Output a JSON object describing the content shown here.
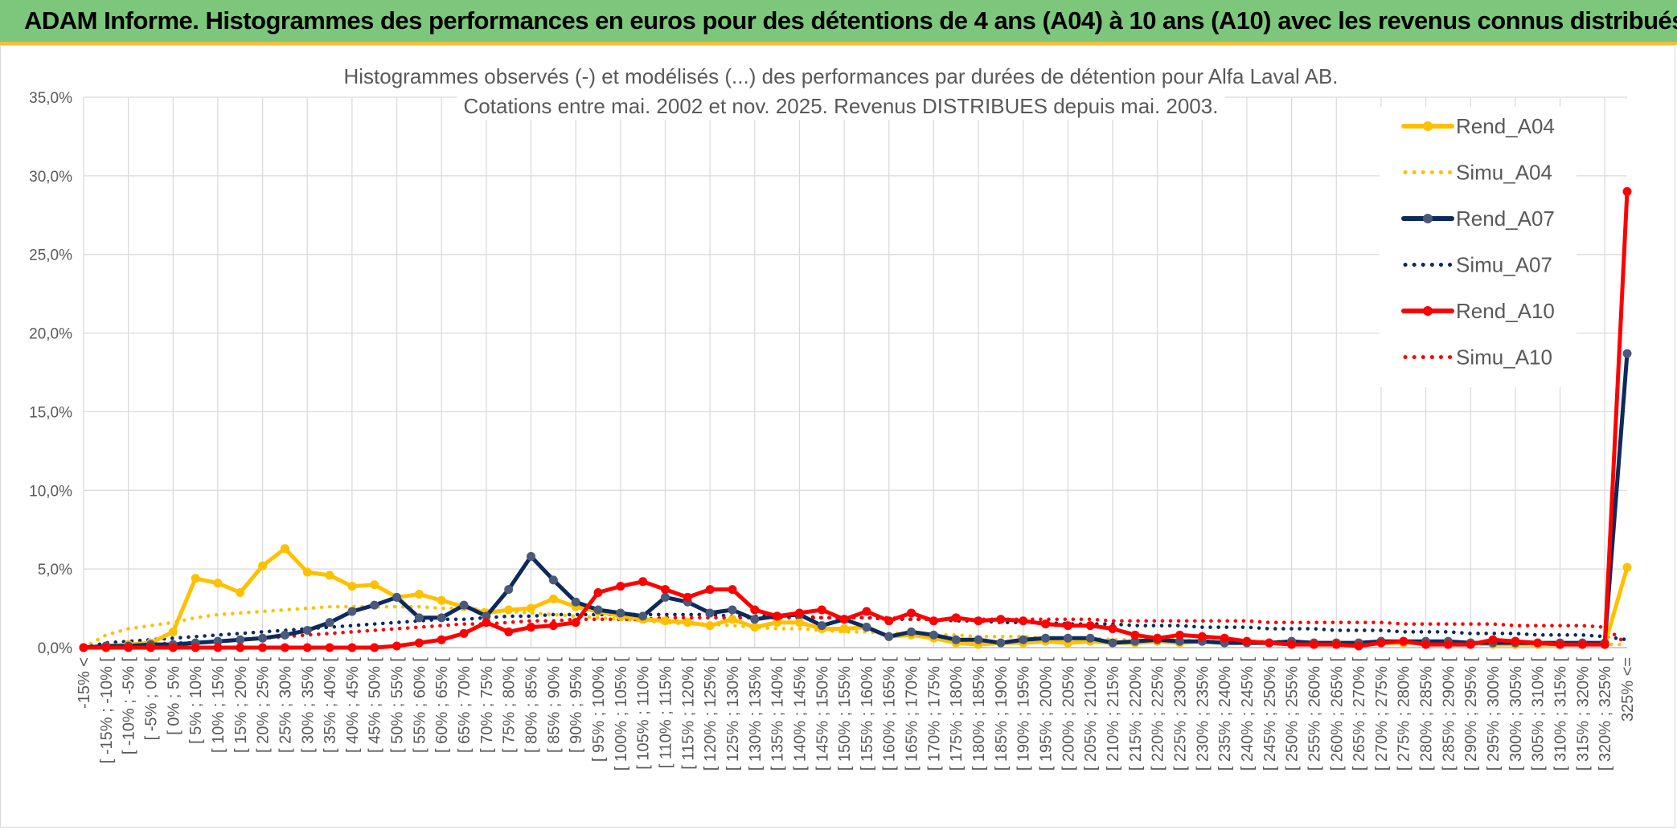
{
  "banner": {
    "title": "ADAM Informe. Histogrammes des performances en euros pour des détentions de 4 ans (A04) à 10 ans (A10) avec les revenus connus distribués"
  },
  "colors": {
    "banner": "#7cc77c",
    "banner_edge": "#f0c040",
    "a04": "#ffc000",
    "a07": "#0d2a5e",
    "a07_marker": "#4a5a7a",
    "a10": "#ff0000",
    "grid": "#d9d9d9",
    "axis_text": "#595959"
  },
  "chart_data": {
    "type": "line",
    "title": [
      "Histogrammes observés (-) et modélisés (...) des performances par durées de détention pour Alfa Laval AB.",
      "Cotations entre mai. 2002 et nov. 2025. Revenus DISTRIBUES depuis mai. 2003."
    ],
    "xlabel": "",
    "ylabel": "",
    "ylim": [
      0,
      35
    ],
    "yticks": [
      "0,0%",
      "5,0%",
      "10,0%",
      "15,0%",
      "20,0%",
      "25,0%",
      "30,0%",
      "35,0%"
    ],
    "legend_position": "right",
    "categories": [
      "-15% <",
      "[ -15% ; -10% [",
      "[ -10% ; -5% [",
      "[ -5% ; 0% [",
      "[ 0% ; 5% [",
      "[ 5% ; 10% [",
      "[ 10% ; 15% [",
      "[ 15% ; 20% [",
      "[ 20% ; 25% [",
      "[ 25% ; 30% [",
      "[ 30% ; 35% [",
      "[ 35% ; 40% [",
      "[ 40% ; 45% [",
      "[ 45% ; 50% [",
      "[ 50% ; 55% [",
      "[ 55% ; 60% [",
      "[ 60% ; 65% [",
      "[ 65% ; 70% [",
      "[ 70% ; 75% [",
      "[ 75% ; 80% [",
      "[ 80% ; 85% [",
      "[ 85% ; 90% [",
      "[ 90% ; 95% [",
      "[ 95% ; 100% [",
      "[ 100% ; 105% [",
      "[ 105% ; 110% [",
      "[ 110% ; 115% [",
      "[ 115% ; 120% [",
      "[ 120% ; 125% [",
      "[ 125% ; 130% [",
      "[ 130% ; 135% [",
      "[ 135% ; 140% [",
      "[ 140% ; 145% [",
      "[ 145% ; 150% [",
      "[ 150% ; 155% [",
      "[ 155% ; 160% [",
      "[ 160% ; 165% [",
      "[ 165% ; 170% [",
      "[ 170% ; 175% [",
      "[ 175% ; 180% [",
      "[ 180% ; 185% [",
      "[ 185% ; 190% [",
      "[ 190% ; 195% [",
      "[ 195% ; 200% [",
      "[ 200% ; 205% [",
      "[ 205% ; 210% [",
      "[ 210% ; 215% [",
      "[ 215% ; 220% [",
      "[ 220% ; 225% [",
      "[ 225% ; 230% [",
      "[ 230% ; 235% [",
      "[ 235% ; 240% [",
      "[ 240% ; 245% [",
      "[ 245% ; 250% [",
      "[ 250% ; 255% [",
      "[ 255% ; 260% [",
      "[ 260% ; 265% [",
      "[ 265% ; 270% [",
      "[ 270% ; 275% [",
      "[ 275% ; 280% [",
      "[ 280% ; 285% [",
      "[ 285% ; 290% [",
      "[ 290% ; 295% [",
      "[ 295% ; 300% [",
      "[ 300% ; 305% [",
      "[ 305% ; 310% [",
      "[ 310% ; 315% [",
      "[ 315% ; 320% [",
      "[ 320% ; 325% [",
      "325% <="
    ],
    "series": [
      {
        "name": "Rend_A04",
        "style": "solid",
        "color": "#ffc000",
        "values": [
          0.0,
          0.1,
          0.2,
          0.3,
          1.0,
          4.4,
          4.1,
          3.5,
          5.2,
          6.3,
          4.8,
          4.6,
          3.9,
          4.0,
          3.2,
          3.4,
          3.0,
          2.6,
          2.2,
          2.4,
          2.5,
          3.1,
          2.6,
          2.3,
          2.0,
          1.8,
          1.7,
          1.6,
          1.4,
          1.8,
          1.3,
          1.6,
          1.6,
          1.2,
          1.2,
          1.3,
          0.7,
          0.8,
          0.6,
          0.3,
          0.2,
          0.3,
          0.3,
          0.4,
          0.3,
          0.4,
          0.3,
          0.3,
          0.4,
          0.3,
          0.4,
          0.3,
          0.3,
          0.3,
          0.3,
          0.3,
          0.3,
          0.3,
          0.3,
          0.3,
          0.3,
          0.3,
          0.3,
          0.2,
          0.2,
          0.2,
          0.2,
          0.2,
          0.2,
          5.1
        ]
      },
      {
        "name": "Simu_A04",
        "style": "dotted",
        "color": "#ffc000",
        "values": [
          0.0,
          0.8,
          1.2,
          1.4,
          1.6,
          1.9,
          2.1,
          2.2,
          2.3,
          2.4,
          2.5,
          2.6,
          2.6,
          2.6,
          2.6,
          2.6,
          2.5,
          2.5,
          2.4,
          2.3,
          2.2,
          2.1,
          2.0,
          1.9,
          1.8,
          1.7,
          1.6,
          1.5,
          1.5,
          1.4,
          1.3,
          1.2,
          1.2,
          1.1,
          1.0,
          1.0,
          0.9,
          0.9,
          0.8,
          0.8,
          0.7,
          0.7,
          0.7,
          0.6,
          0.6,
          0.6,
          0.5,
          0.5,
          0.5,
          0.5,
          0.4,
          0.4,
          0.4,
          0.4,
          0.4,
          0.3,
          0.3,
          0.3,
          0.3,
          0.3,
          0.3,
          0.3,
          0.2,
          0.2,
          0.2,
          0.2,
          0.2,
          0.2,
          0.2,
          0.2
        ]
      },
      {
        "name": "Rend_A07",
        "style": "solid",
        "color": "#0d2a5e",
        "values": [
          0.0,
          0.1,
          0.1,
          0.2,
          0.2,
          0.3,
          0.4,
          0.5,
          0.6,
          0.8,
          1.1,
          1.6,
          2.3,
          2.7,
          3.2,
          1.9,
          1.9,
          2.7,
          2.0,
          3.7,
          5.8,
          4.3,
          2.9,
          2.4,
          2.2,
          2.0,
          3.2,
          2.9,
          2.2,
          2.4,
          1.8,
          2.0,
          2.1,
          1.4,
          1.8,
          1.3,
          0.7,
          1.0,
          0.8,
          0.5,
          0.5,
          0.3,
          0.5,
          0.6,
          0.6,
          0.6,
          0.3,
          0.4,
          0.5,
          0.4,
          0.4,
          0.3,
          0.3,
          0.3,
          0.4,
          0.3,
          0.3,
          0.3,
          0.4,
          0.4,
          0.4,
          0.4,
          0.3,
          0.3,
          0.3,
          0.3,
          0.3,
          0.3,
          0.3,
          18.7
        ]
      },
      {
        "name": "Simu_A07",
        "style": "dotted",
        "color": "#0d2a5e",
        "values": [
          0.0,
          0.3,
          0.4,
          0.5,
          0.6,
          0.7,
          0.8,
          0.9,
          1.0,
          1.1,
          1.2,
          1.3,
          1.4,
          1.5,
          1.6,
          1.7,
          1.8,
          1.8,
          1.9,
          2.0,
          2.0,
          2.1,
          2.1,
          2.1,
          2.1,
          2.1,
          2.1,
          2.1,
          2.1,
          2.0,
          2.0,
          2.0,
          2.0,
          1.9,
          1.9,
          1.9,
          1.8,
          1.8,
          1.8,
          1.7,
          1.7,
          1.6,
          1.6,
          1.6,
          1.5,
          1.5,
          1.5,
          1.4,
          1.4,
          1.4,
          1.3,
          1.3,
          1.3,
          1.2,
          1.2,
          1.2,
          1.1,
          1.1,
          1.1,
          1.0,
          1.0,
          1.0,
          0.9,
          0.9,
          0.9,
          0.8,
          0.8,
          0.8,
          0.7,
          0.5
        ]
      },
      {
        "name": "Rend_A10",
        "style": "solid",
        "color": "#ff0000",
        "values": [
          0.0,
          0.0,
          0.0,
          0.0,
          0.0,
          0.0,
          0.0,
          0.0,
          0.0,
          0.0,
          0.0,
          0.0,
          0.0,
          0.0,
          0.1,
          0.3,
          0.5,
          0.9,
          1.6,
          1.0,
          1.3,
          1.4,
          1.6,
          3.5,
          3.9,
          4.2,
          3.7,
          3.2,
          3.7,
          3.7,
          2.4,
          2.0,
          2.2,
          2.4,
          1.8,
          2.3,
          1.7,
          2.2,
          1.7,
          1.9,
          1.7,
          1.8,
          1.7,
          1.5,
          1.4,
          1.4,
          1.2,
          0.8,
          0.6,
          0.8,
          0.7,
          0.6,
          0.4,
          0.3,
          0.2,
          0.2,
          0.2,
          0.1,
          0.3,
          0.4,
          0.2,
          0.2,
          0.2,
          0.5,
          0.4,
          0.3,
          0.2,
          0.2,
          0.2,
          29.0
        ]
      },
      {
        "name": "Simu_A10",
        "style": "dotted",
        "color": "#ff0000",
        "values": [
          0.0,
          0.1,
          0.1,
          0.2,
          0.3,
          0.3,
          0.4,
          0.5,
          0.6,
          0.7,
          0.8,
          0.9,
          1.0,
          1.1,
          1.2,
          1.3,
          1.4,
          1.5,
          1.5,
          1.6,
          1.7,
          1.7,
          1.8,
          1.8,
          1.8,
          1.8,
          1.9,
          1.9,
          1.9,
          1.9,
          1.9,
          1.9,
          1.9,
          1.9,
          1.9,
          1.9,
          1.9,
          1.8,
          1.8,
          1.8,
          1.8,
          1.8,
          1.8,
          1.8,
          1.8,
          1.8,
          1.7,
          1.7,
          1.7,
          1.7,
          1.7,
          1.7,
          1.7,
          1.6,
          1.6,
          1.6,
          1.6,
          1.6,
          1.6,
          1.5,
          1.5,
          1.5,
          1.5,
          1.5,
          1.4,
          1.4,
          1.4,
          1.4,
          1.3,
          0.2
        ]
      }
    ]
  }
}
